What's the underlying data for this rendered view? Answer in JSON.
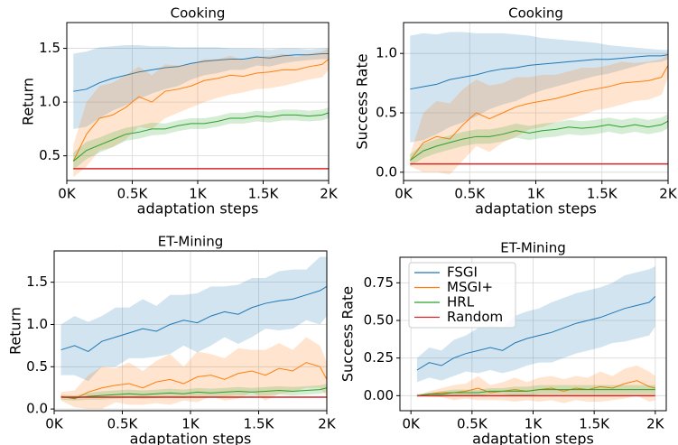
{
  "chart_data": [
    {
      "type": "line",
      "title": "Cooking",
      "xlabel": "adaptation steps",
      "ylabel": "Return",
      "x": [
        50,
        150,
        250,
        350,
        450,
        550,
        650,
        750,
        850,
        950,
        1050,
        1150,
        1250,
        1350,
        1450,
        1550,
        1650,
        1750,
        1850,
        1950,
        2000
      ],
      "xlim": [
        0,
        2000
      ],
      "xticks": [
        {
          "value": 0,
          "label": "0K"
        },
        {
          "value": 500,
          "label": "0.5K"
        },
        {
          "value": 1000,
          "label": "1K"
        },
        {
          "value": 1500,
          "label": "1.5K"
        },
        {
          "value": 2000,
          "label": "2K"
        }
      ],
      "ylim": [
        0.27,
        1.74
      ],
      "yticks": [
        0.5,
        {
          "value": 1.0,
          "label": "1.0"
        },
        1.5
      ],
      "grid": true,
      "series": [
        {
          "name": "FSGI",
          "color": "#1f77b4",
          "values": [
            1.1,
            1.12,
            1.18,
            1.22,
            1.25,
            1.28,
            1.3,
            1.32,
            1.33,
            1.36,
            1.38,
            1.39,
            1.4,
            1.4,
            1.42,
            1.41,
            1.43,
            1.44,
            1.44,
            1.45,
            1.45
          ],
          "error": [
            0.35,
            0.35,
            0.33,
            0.3,
            0.28,
            0.25,
            0.22,
            0.2,
            0.18,
            0.15,
            0.13,
            0.12,
            0.1,
            0.1,
            0.08,
            0.08,
            0.07,
            0.06,
            0.05,
            0.05,
            0.05
          ]
        },
        {
          "name": "MSGI+",
          "color": "#ff7f0e",
          "values": [
            0.45,
            0.7,
            0.85,
            0.88,
            0.95,
            1.05,
            1.0,
            1.1,
            1.12,
            1.15,
            1.2,
            1.22,
            1.25,
            1.24,
            1.27,
            1.28,
            1.3,
            1.3,
            1.33,
            1.35,
            1.4
          ],
          "error": [
            0.15,
            0.3,
            0.3,
            0.3,
            0.3,
            0.28,
            0.25,
            0.25,
            0.22,
            0.2,
            0.2,
            0.18,
            0.18,
            0.15,
            0.15,
            0.15,
            0.15,
            0.12,
            0.12,
            0.12,
            0.1
          ]
        },
        {
          "name": "HRL",
          "color": "#2ca02c",
          "values": [
            0.45,
            0.55,
            0.6,
            0.65,
            0.7,
            0.72,
            0.75,
            0.75,
            0.78,
            0.8,
            0.8,
            0.82,
            0.85,
            0.85,
            0.87,
            0.86,
            0.88,
            0.88,
            0.87,
            0.88,
            0.9
          ],
          "error": [
            0.08,
            0.08,
            0.07,
            0.07,
            0.06,
            0.06,
            0.06,
            0.05,
            0.05,
            0.05,
            0.05,
            0.05,
            0.05,
            0.05,
            0.05,
            0.05,
            0.05,
            0.05,
            0.05,
            0.05,
            0.05
          ]
        },
        {
          "name": "Random",
          "color": "#d62728",
          "values": [
            0.38,
            0.38,
            0.38,
            0.38,
            0.38,
            0.38,
            0.38,
            0.38,
            0.38,
            0.38,
            0.38,
            0.38,
            0.38,
            0.38,
            0.38,
            0.38,
            0.38,
            0.38,
            0.38,
            0.38,
            0.38
          ]
        }
      ]
    },
    {
      "type": "line",
      "title": "Cooking",
      "xlabel": "adaptation steps",
      "ylabel": "Success Rate",
      "x": [
        50,
        150,
        250,
        350,
        450,
        550,
        650,
        750,
        850,
        950,
        1050,
        1150,
        1250,
        1350,
        1450,
        1550,
        1650,
        1750,
        1850,
        1950,
        2000
      ],
      "xlim": [
        0,
        2000
      ],
      "xticks": [
        {
          "value": 0,
          "label": "0K"
        },
        {
          "value": 500,
          "label": "0.5K"
        },
        {
          "value": 1000,
          "label": "1K"
        },
        {
          "value": 1500,
          "label": "1.5K"
        },
        {
          "value": 2000,
          "label": "2K"
        }
      ],
      "ylim": [
        -0.07,
        1.26
      ],
      "yticks": [
        {
          "value": 0,
          "label": "0.0"
        },
        0.5,
        {
          "value": 1.0,
          "label": "1.0"
        }
      ],
      "grid": true,
      "series": [
        {
          "name": "FSGI",
          "color": "#1f77b4",
          "values": [
            0.7,
            0.72,
            0.74,
            0.78,
            0.8,
            0.82,
            0.85,
            0.87,
            0.88,
            0.9,
            0.91,
            0.92,
            0.93,
            0.94,
            0.95,
            0.95,
            0.96,
            0.97,
            0.98,
            0.98,
            0.99
          ],
          "error": [
            0.45,
            0.45,
            0.42,
            0.4,
            0.38,
            0.35,
            0.32,
            0.3,
            0.28,
            0.25,
            0.22,
            0.2,
            0.18,
            0.16,
            0.14,
            0.12,
            0.1,
            0.08,
            0.06,
            0.05,
            0.04
          ]
        },
        {
          "name": "MSGI+",
          "color": "#ff7f0e",
          "values": [
            0.1,
            0.25,
            0.3,
            0.28,
            0.4,
            0.5,
            0.45,
            0.5,
            0.55,
            0.58,
            0.6,
            0.62,
            0.65,
            0.68,
            0.7,
            0.72,
            0.75,
            0.76,
            0.77,
            0.8,
            0.9
          ],
          "error": [
            0.05,
            0.25,
            0.3,
            0.3,
            0.3,
            0.28,
            0.28,
            0.25,
            0.25,
            0.22,
            0.22,
            0.2,
            0.2,
            0.2,
            0.18,
            0.18,
            0.18,
            0.16,
            0.16,
            0.15,
            0.1
          ]
        },
        {
          "name": "HRL",
          "color": "#2ca02c",
          "values": [
            0.1,
            0.18,
            0.22,
            0.25,
            0.28,
            0.3,
            0.3,
            0.32,
            0.35,
            0.33,
            0.35,
            0.36,
            0.38,
            0.37,
            0.38,
            0.4,
            0.38,
            0.4,
            0.38,
            0.4,
            0.43
          ],
          "error": [
            0.05,
            0.06,
            0.06,
            0.06,
            0.06,
            0.06,
            0.06,
            0.06,
            0.06,
            0.06,
            0.06,
            0.06,
            0.06,
            0.06,
            0.06,
            0.06,
            0.06,
            0.06,
            0.06,
            0.06,
            0.06
          ]
        },
        {
          "name": "Random",
          "color": "#d62728",
          "values": [
            0.07,
            0.07,
            0.07,
            0.07,
            0.07,
            0.07,
            0.07,
            0.07,
            0.07,
            0.07,
            0.07,
            0.07,
            0.07,
            0.07,
            0.07,
            0.07,
            0.07,
            0.07,
            0.07,
            0.07,
            0.07
          ]
        }
      ]
    },
    {
      "type": "line",
      "title": "ET-Mining",
      "xlabel": "adaptation steps",
      "ylabel": "Return",
      "x": [
        50,
        150,
        250,
        350,
        450,
        550,
        650,
        750,
        850,
        950,
        1050,
        1150,
        1250,
        1350,
        1450,
        1550,
        1650,
        1750,
        1850,
        1950,
        2000
      ],
      "xlim": [
        0,
        2000
      ],
      "xticks": [
        {
          "value": 0,
          "label": "0K"
        },
        {
          "value": 500,
          "label": "0.5K"
        },
        {
          "value": 1000,
          "label": "1K"
        },
        {
          "value": 1500,
          "label": "1.5K"
        },
        {
          "value": 2000,
          "label": "2K"
        }
      ],
      "ylim": [
        -0.02,
        1.87
      ],
      "yticks": [
        {
          "value": 0,
          "label": "0.0"
        },
        0.5,
        {
          "value": 1.0,
          "label": "1.0"
        },
        1.5
      ],
      "grid": true,
      "series": [
        {
          "name": "FSGI",
          "color": "#1f77b4",
          "values": [
            0.7,
            0.75,
            0.68,
            0.8,
            0.85,
            0.9,
            0.95,
            0.92,
            1.0,
            1.05,
            1.02,
            1.1,
            1.15,
            1.12,
            1.2,
            1.25,
            1.28,
            1.3,
            1.35,
            1.4,
            1.45
          ],
          "error": [
            0.3,
            0.35,
            0.35,
            0.3,
            0.35,
            0.3,
            0.35,
            0.3,
            0.35,
            0.3,
            0.35,
            0.35,
            0.3,
            0.35,
            0.35,
            0.3,
            0.35,
            0.35,
            0.3,
            0.4,
            0.35
          ]
        },
        {
          "name": "MSGI+",
          "color": "#ff7f0e",
          "values": [
            0.15,
            0.12,
            0.2,
            0.25,
            0.28,
            0.3,
            0.25,
            0.32,
            0.35,
            0.3,
            0.38,
            0.4,
            0.35,
            0.42,
            0.45,
            0.4,
            0.48,
            0.45,
            0.55,
            0.5,
            0.35
          ],
          "error": [
            0.05,
            0.1,
            0.2,
            0.25,
            0.2,
            0.25,
            0.2,
            0.25,
            0.3,
            0.2,
            0.3,
            0.25,
            0.25,
            0.3,
            0.25,
            0.3,
            0.3,
            0.25,
            0.3,
            0.25,
            0.2
          ]
        },
        {
          "name": "HRL",
          "color": "#2ca02c",
          "values": [
            0.14,
            0.13,
            0.15,
            0.16,
            0.17,
            0.18,
            0.17,
            0.18,
            0.19,
            0.18,
            0.2,
            0.19,
            0.2,
            0.21,
            0.2,
            0.21,
            0.22,
            0.21,
            0.22,
            0.23,
            0.25
          ],
          "error": [
            0.03,
            0.03,
            0.04,
            0.05,
            0.05,
            0.05,
            0.05,
            0.05,
            0.05,
            0.05,
            0.05,
            0.05,
            0.05,
            0.05,
            0.05,
            0.05,
            0.05,
            0.05,
            0.05,
            0.05,
            0.05
          ]
        },
        {
          "name": "Random",
          "color": "#d62728",
          "values": [
            0.14,
            0.14,
            0.14,
            0.14,
            0.14,
            0.14,
            0.14,
            0.14,
            0.14,
            0.14,
            0.14,
            0.14,
            0.14,
            0.14,
            0.14,
            0.14,
            0.14,
            0.14,
            0.14,
            0.14,
            0.14
          ]
        }
      ]
    },
    {
      "type": "line",
      "title": "ET-Mining",
      "xlabel": "adaptation steps",
      "ylabel": "Success Rate",
      "x": [
        50,
        150,
        250,
        350,
        450,
        550,
        650,
        750,
        850,
        950,
        1050,
        1150,
        1250,
        1350,
        1450,
        1550,
        1650,
        1750,
        1850,
        1950,
        2000
      ],
      "xlim": [
        -90,
        2090
      ],
      "xticks": [
        {
          "value": 0,
          "label": "0K"
        },
        {
          "value": 500,
          "label": "0.5K"
        },
        {
          "value": 1000,
          "label": "1K"
        },
        {
          "value": 1500,
          "label": "1.5K"
        },
        {
          "value": 2000,
          "label": "2K"
        }
      ],
      "ylim": [
        -0.1,
        0.92
      ],
      "yticks": [
        {
          "value": 0,
          "label": "0.00"
        },
        0.25,
        {
          "value": 0.5,
          "label": "0.50"
        },
        0.75
      ],
      "grid": true,
      "legend": "upper left",
      "series": [
        {
          "name": "FSGI",
          "color": "#1f77b4",
          "values": [
            0.17,
            0.22,
            0.2,
            0.25,
            0.28,
            0.3,
            0.32,
            0.3,
            0.35,
            0.38,
            0.4,
            0.42,
            0.45,
            0.48,
            0.5,
            0.52,
            0.55,
            0.58,
            0.6,
            0.62,
            0.66
          ],
          "error": [
            0.08,
            0.1,
            0.1,
            0.12,
            0.12,
            0.15,
            0.15,
            0.15,
            0.18,
            0.18,
            0.18,
            0.2,
            0.2,
            0.2,
            0.2,
            0.2,
            0.2,
            0.22,
            0.22,
            0.22,
            0.2
          ]
        },
        {
          "name": "MSGI+",
          "color": "#ff7f0e",
          "values": [
            0.0,
            0.01,
            0.02,
            0.02,
            0.03,
            0.05,
            0.02,
            0.03,
            0.04,
            0.03,
            0.04,
            0.05,
            0.03,
            0.05,
            0.04,
            0.06,
            0.05,
            0.08,
            0.1,
            0.06,
            0.05
          ],
          "error": [
            0.0,
            0.02,
            0.03,
            0.05,
            0.05,
            0.08,
            0.05,
            0.06,
            0.08,
            0.06,
            0.08,
            0.08,
            0.08,
            0.08,
            0.08,
            0.1,
            0.08,
            0.1,
            0.1,
            0.1,
            0.08
          ]
        },
        {
          "name": "HRL",
          "color": "#2ca02c",
          "values": [
            0.0,
            0.01,
            0.01,
            0.02,
            0.02,
            0.02,
            0.03,
            0.03,
            0.03,
            0.03,
            0.04,
            0.04,
            0.04,
            0.04,
            0.04,
            0.04,
            0.04,
            0.04,
            0.04,
            0.04,
            0.04
          ],
          "error": [
            0.01,
            0.01,
            0.02,
            0.02,
            0.02,
            0.02,
            0.02,
            0.02,
            0.03,
            0.03,
            0.03,
            0.03,
            0.03,
            0.03,
            0.03,
            0.03,
            0.03,
            0.03,
            0.03,
            0.03,
            0.03
          ]
        },
        {
          "name": "Random",
          "color": "#d62728",
          "values": [
            0.0,
            0.0,
            0.0,
            0.0,
            0.0,
            0.0,
            0.0,
            0.0,
            0.0,
            0.0,
            0.0,
            0.0,
            0.0,
            0.0,
            0.0,
            0.0,
            0.0,
            0.0,
            0.0,
            0.0,
            0.0
          ]
        }
      ]
    }
  ]
}
